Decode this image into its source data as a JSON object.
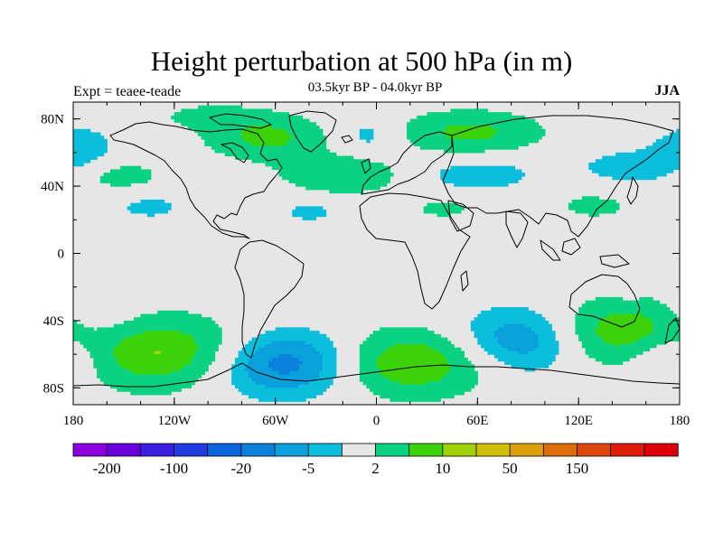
{
  "title": "Height perturbation at 500 hPa (in m)",
  "subtitle": "03.5kyr BP - 04.0kyr BP",
  "left_label": "Expt = teaee-teade",
  "right_label": "JJA",
  "colors": {
    "background_land_ocean": "#e6e6e6",
    "coastline": "#000000",
    "level_colors": [
      "#8c00e0",
      "#6a00dc",
      "#3c1ee0",
      "#1e3ce0",
      "#0a64dc",
      "#0a82dc",
      "#0aa0dc",
      "#0abedc",
      "#e6e6e6",
      "#0ad282",
      "#3cd20a",
      "#a0d20a",
      "#d2be0a",
      "#dca00a",
      "#dc6e0a",
      "#dc460a",
      "#dc1e0a",
      "#dc000a"
    ]
  },
  "chart_data": {
    "type": "heatmap",
    "projection": "cylindrical-equidistant",
    "x_range": [
      -180,
      180
    ],
    "y_range": [
      -90,
      90
    ],
    "x_tick_values": [
      -180,
      -120,
      -60,
      0,
      60,
      120,
      180
    ],
    "x_tick_labels": [
      "180",
      "120W",
      "60W",
      "0",
      "60E",
      "120E",
      "180"
    ],
    "y_tick_values": [
      80,
      40,
      0,
      -40,
      -80
    ],
    "y_tick_labels": [
      "80N",
      "40N",
      "0",
      "40S",
      "80S"
    ],
    "colorbar": {
      "labels": [
        "-200",
        "-100",
        "-20",
        "-5",
        "2",
        "10",
        "50",
        "150"
      ],
      "label_boxes": [
        1,
        3,
        5,
        7,
        9,
        11,
        13,
        15
      ]
    },
    "anomaly_fields": [
      {
        "lon": -120,
        "lat": -60,
        "value": 11,
        "sx": 35,
        "sy": 15
      },
      {
        "lon": -55,
        "lat": -65,
        "value": -12,
        "sx": 38,
        "sy": 14
      },
      {
        "lon": 15,
        "lat": -65,
        "value": 11,
        "sx": 35,
        "sy": 14
      },
      {
        "lon": 85,
        "lat": -52,
        "value": -8,
        "sx": 28,
        "sy": 14
      },
      {
        "lon": 145,
        "lat": -47,
        "value": 9,
        "sx": 28,
        "sy": 14
      },
      {
        "lon": 172,
        "lat": -62,
        "value": -6,
        "sx": 16,
        "sy": 10
      },
      {
        "lon": -65,
        "lat": 69,
        "value": 7,
        "sx": 25,
        "sy": 9
      },
      {
        "lon": 55,
        "lat": 72,
        "value": 7,
        "sx": 30,
        "sy": 9
      },
      {
        "lon": -20,
        "lat": 47,
        "value": 6,
        "sx": 25,
        "sy": 8
      },
      {
        "lon": -153,
        "lat": 46,
        "value": 4,
        "sx": 20,
        "sy": 7
      },
      {
        "lon": -175,
        "lat": 63,
        "value": -4,
        "sx": 15,
        "sy": 10
      },
      {
        "lon": -5,
        "lat": 70,
        "value": -4,
        "sx": 14,
        "sy": 8
      },
      {
        "lon": 60,
        "lat": 47,
        "value": -4,
        "sx": 28,
        "sy": 8
      },
      {
        "lon": 150,
        "lat": 50,
        "value": -4,
        "sx": 24,
        "sy": 9
      },
      {
        "lon": 40,
        "lat": 27,
        "value": 3,
        "sx": 18,
        "sy": 6
      },
      {
        "lon": 130,
        "lat": 30,
        "value": 3,
        "sx": 25,
        "sy": 10
      },
      {
        "lon": -135,
        "lat": 28,
        "value": -3,
        "sx": 20,
        "sy": 7
      },
      {
        "lon": -40,
        "lat": 25,
        "value": -3,
        "sx": 15,
        "sy": 6
      },
      {
        "lon": 150,
        "lat": -20,
        "value": -3,
        "sx": 5,
        "sy": 5
      },
      {
        "lon": -100,
        "lat": 82,
        "value": 3,
        "sx": 25,
        "sy": 6
      },
      {
        "lon": -165,
        "lat": -35,
        "value": -3,
        "sx": 15,
        "sy": 10
      }
    ]
  }
}
